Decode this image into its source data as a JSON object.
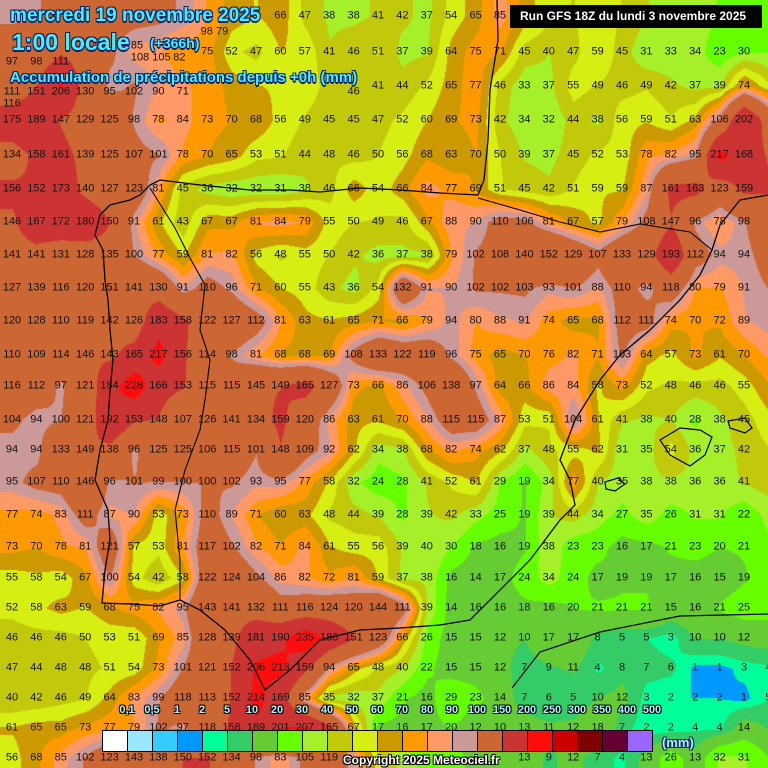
{
  "header": {
    "date": "mercredi 19 novembre 2025",
    "hour": "1:00 locale",
    "lead": "(+366h)",
    "subtitle": "Accumulation de précipitations depuis +0h (mm)",
    "run": "Run GFS 18Z du lundi 3 novembre 2025"
  },
  "legend": {
    "unit": "(mm)",
    "items": [
      {
        "label": "0,1",
        "max": 0.1,
        "color": "#ffffff"
      },
      {
        "label": "0,5",
        "max": 0.5,
        "color": "#99e6ff"
      },
      {
        "label": "1",
        "max": 1,
        "color": "#33ccff"
      },
      {
        "label": "2",
        "max": 2,
        "color": "#0099ff"
      },
      {
        "label": "5",
        "max": 5,
        "color": "#00ff99"
      },
      {
        "label": "10",
        "max": 10,
        "color": "#33cc66"
      },
      {
        "label": "20",
        "max": 20,
        "color": "#66cc33"
      },
      {
        "label": "30",
        "max": 30,
        "color": "#66ff00"
      },
      {
        "label": "40",
        "max": 40,
        "color": "#a6f02a"
      },
      {
        "label": "50",
        "max": 50,
        "color": "#c2c90a"
      },
      {
        "label": "60",
        "max": 60,
        "color": "#d7ee12"
      },
      {
        "label": "70",
        "max": 70,
        "color": "#cc9900"
      },
      {
        "label": "80",
        "max": 80,
        "color": "#ff9900"
      },
      {
        "label": "90",
        "max": 90,
        "color": "#ff9966"
      },
      {
        "label": "100",
        "max": 100,
        "color": "#cc9999"
      },
      {
        "label": "150",
        "max": 150,
        "color": "#cc6633"
      },
      {
        "label": "200",
        "max": 200,
        "color": "#cc3333"
      },
      {
        "label": "250",
        "max": 250,
        "color": "#ff0d0d"
      },
      {
        "label": "300",
        "max": 300,
        "color": "#cc0000"
      },
      {
        "label": "350",
        "max": 350,
        "color": "#800000"
      },
      {
        "label": "400",
        "max": 400,
        "color": "#660033"
      },
      {
        "label": "500",
        "max": 500,
        "color": "#9966ff"
      }
    ]
  },
  "copyright": "Copyright 2025 Meteociel.fr",
  "precip_grid_mm": [
    [
      97,
      98,
      111,
      null,
      null,
      108,
      105,
      98,
      79,
      null,
      null,
      66,
      47,
      38,
      38,
      41,
      42,
      37,
      54,
      65,
      85,
      null,
      null,
      null,
      null,
      null,
      null,
      null,
      null,
      null,
      null,
      null
    ],
    [
      111,
      null,
      null,
      null,
      null,
      85,
      82,
      71,
      75,
      52,
      47,
      60,
      57,
      41,
      46,
      51,
      37,
      39,
      64,
      75,
      71,
      45,
      40,
      47,
      59,
      45,
      31,
      33,
      34,
      23,
      30,
      null
    ],
    [
      116,
      151,
      206,
      130,
      95,
      102,
      90,
      null,
      null,
      null,
      null,
      null,
      null,
      null,
      46,
      41,
      44,
      52,
      65,
      77,
      46,
      33,
      37,
      55,
      49,
      46,
      49,
      42,
      37,
      39,
      74,
      null
    ],
    [
      175,
      189,
      147,
      129,
      125,
      98,
      78,
      84,
      73,
      70,
      68,
      56,
      49,
      45,
      45,
      47,
      52,
      60,
      69,
      73,
      42,
      34,
      32,
      44,
      38,
      56,
      59,
      51,
      63,
      106,
      202,
      null
    ],
    [
      134,
      158,
      161,
      139,
      125,
      107,
      101,
      78,
      70,
      65,
      53,
      51,
      44,
      48,
      46,
      50,
      56,
      68,
      63,
      70,
      50,
      39,
      37,
      45,
      52,
      53,
      78,
      82,
      95,
      217,
      168,
      null
    ],
    [
      156,
      152,
      173,
      140,
      127,
      123,
      81,
      45,
      36,
      32,
      32,
      31,
      38,
      46,
      66,
      54,
      66,
      84,
      77,
      69,
      51,
      45,
      42,
      51,
      59,
      59,
      87,
      161,
      163,
      123,
      159,
      null
    ],
    [
      146,
      167,
      172,
      180,
      150,
      91,
      61,
      43,
      67,
      67,
      81,
      84,
      79,
      55,
      50,
      49,
      46,
      67,
      88,
      90,
      110,
      106,
      81,
      67,
      57,
      79,
      108,
      147,
      96,
      78,
      98,
      null
    ],
    [
      141,
      141,
      131,
      128,
      135,
      100,
      77,
      59,
      81,
      82,
      56,
      48,
      55,
      50,
      42,
      36,
      37,
      38,
      79,
      102,
      108,
      140,
      152,
      129,
      107,
      133,
      129,
      193,
      112,
      94,
      94,
      null
    ],
    [
      127,
      139,
      116,
      120,
      151,
      141,
      130,
      91,
      110,
      96,
      71,
      60,
      55,
      43,
      36,
      54,
      132,
      91,
      90,
      102,
      102,
      103,
      93,
      101,
      88,
      110,
      94,
      118,
      80,
      79,
      91,
      null
    ],
    [
      120,
      128,
      110,
      119,
      142,
      126,
      183,
      158,
      122,
      127,
      112,
      81,
      63,
      61,
      65,
      71,
      66,
      79,
      94,
      80,
      88,
      91,
      74,
      65,
      68,
      112,
      111,
      74,
      70,
      72,
      89,
      null
    ],
    [
      110,
      109,
      114,
      146,
      143,
      165,
      217,
      156,
      114,
      98,
      81,
      68,
      68,
      69,
      108,
      133,
      122,
      119,
      96,
      75,
      65,
      70,
      76,
      82,
      71,
      103,
      64,
      57,
      73,
      61,
      70,
      null
    ],
    [
      116,
      112,
      97,
      121,
      184,
      228,
      166,
      153,
      115,
      115,
      145,
      149,
      165,
      127,
      73,
      66,
      86,
      106,
      138,
      97,
      64,
      66,
      86,
      84,
      58,
      73,
      52,
      48,
      46,
      46,
      55,
      null
    ],
    [
      104,
      94,
      100,
      121,
      192,
      153,
      148,
      107,
      126,
      141,
      134,
      159,
      120,
      86,
      63,
      61,
      70,
      88,
      115,
      115,
      87,
      53,
      51,
      104,
      61,
      41,
      38,
      40,
      28,
      38,
      45,
      null
    ],
    [
      94,
      94,
      133,
      149,
      138,
      96,
      125,
      125,
      106,
      115,
      101,
      148,
      109,
      92,
      62,
      34,
      38,
      68,
      82,
      74,
      62,
      37,
      48,
      55,
      62,
      31,
      35,
      54,
      36,
      37,
      42,
      null
    ],
    [
      95,
      107,
      110,
      146,
      96,
      101,
      99,
      100,
      100,
      102,
      93,
      95,
      77,
      58,
      32,
      24,
      28,
      41,
      52,
      61,
      29,
      19,
      34,
      77,
      40,
      35,
      38,
      38,
      36,
      36,
      41,
      null
    ],
    [
      77,
      74,
      83,
      111,
      87,
      90,
      53,
      73,
      110,
      89,
      71,
      60,
      63,
      48,
      44,
      39,
      28,
      39,
      42,
      33,
      25,
      19,
      39,
      44,
      34,
      27,
      35,
      26,
      31,
      31,
      22,
      null
    ],
    [
      73,
      70,
      78,
      81,
      121,
      57,
      53,
      81,
      117,
      102,
      82,
      71,
      84,
      61,
      55,
      56,
      39,
      40,
      30,
      18,
      16,
      19,
      38,
      23,
      23,
      16,
      17,
      21,
      23,
      20,
      21,
      null
    ],
    [
      55,
      58,
      54,
      67,
      100,
      54,
      42,
      58,
      122,
      124,
      104,
      86,
      82,
      72,
      81,
      59,
      37,
      38,
      16,
      14,
      17,
      24,
      34,
      24,
      17,
      19,
      19,
      17,
      16,
      15,
      19,
      null
    ],
    [
      52,
      58,
      63,
      59,
      68,
      75,
      82,
      95,
      143,
      141,
      132,
      111,
      116,
      124,
      120,
      144,
      111,
      39,
      14,
      16,
      16,
      18,
      16,
      20,
      21,
      21,
      21,
      15,
      16,
      21,
      25,
      null
    ],
    [
      46,
      46,
      46,
      50,
      53,
      51,
      69,
      85,
      128,
      139,
      181,
      190,
      235,
      186,
      151,
      123,
      66,
      26,
      15,
      15,
      12,
      10,
      17,
      17,
      8,
      5,
      5,
      3,
      10,
      10,
      12,
      null
    ],
    [
      47,
      44,
      48,
      48,
      51,
      54,
      73,
      101,
      121,
      152,
      206,
      213,
      159,
      94,
      65,
      48,
      40,
      22,
      15,
      15,
      12,
      7,
      9,
      11,
      4,
      8,
      7,
      6,
      1,
      1,
      3,
      4
    ],
    [
      40,
      42,
      46,
      49,
      64,
      83,
      99,
      118,
      113,
      152,
      214,
      169,
      85,
      35,
      32,
      37,
      21,
      16,
      29,
      23,
      14,
      7,
      6,
      5,
      10,
      12,
      3,
      2,
      2,
      2,
      1,
      5
    ],
    [
      61,
      65,
      65,
      73,
      77,
      79,
      102,
      97,
      118,
      158,
      189,
      201,
      207,
      165,
      67,
      17,
      16,
      17,
      20,
      12,
      10,
      13,
      11,
      12,
      18,
      7,
      2,
      2,
      4,
      4,
      14,
      null
    ],
    [
      56,
      68,
      85,
      102,
      123,
      143,
      138,
      150,
      152,
      134,
      98,
      83,
      105,
      119,
      null,
      null,
      null,
      null,
      null,
      null,
      null,
      13,
      9,
      12,
      7,
      4,
      13,
      26,
      13,
      32,
      31,
      null
    ]
  ]
}
